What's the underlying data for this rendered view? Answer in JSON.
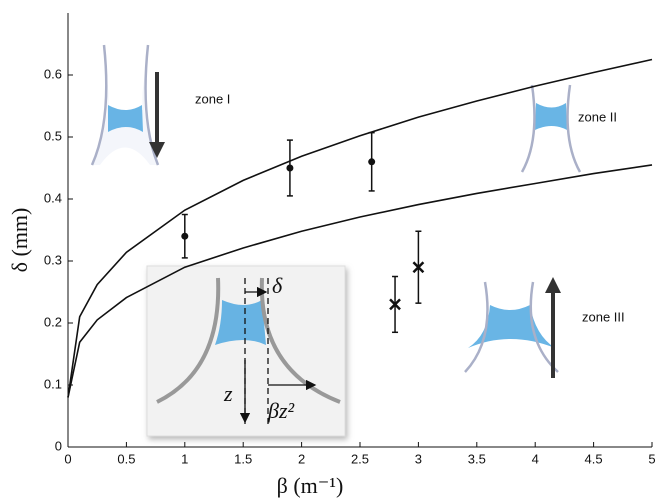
{
  "chart_data": {
    "type": "line",
    "x_label": "β (m⁻¹)",
    "y_label": "δ (mm)",
    "xlim": [
      0,
      5
    ],
    "ylim": [
      0,
      0.7
    ],
    "xticks": [
      0,
      0.5,
      1,
      1.5,
      2,
      2.5,
      3,
      3.5,
      4,
      4.5,
      5
    ],
    "yticks": [
      0,
      0.1,
      0.2,
      0.3,
      0.4,
      0.5,
      0.6
    ],
    "curves": [
      {
        "color": "#111111",
        "x": [
          0,
          0.1,
          0.25,
          0.5,
          1,
          1.5,
          2,
          2.5,
          3,
          3.5,
          4,
          4.5,
          5
        ],
        "values": [
          0.08,
          0.21,
          0.262,
          0.314,
          0.382,
          0.43,
          0.469,
          0.502,
          0.532,
          0.558,
          0.582,
          0.604,
          0.625
        ]
      },
      {
        "color": "#111111",
        "x": [
          0,
          0.1,
          0.25,
          0.5,
          1,
          1.5,
          2,
          2.5,
          3,
          3.5,
          4,
          4.5,
          5
        ],
        "values": [
          0.08,
          0.169,
          0.205,
          0.241,
          0.29,
          0.321,
          0.348,
          0.371,
          0.391,
          0.409,
          0.425,
          0.441,
          0.455
        ]
      }
    ],
    "points": [
      {
        "marker": "dot",
        "color": "#111111",
        "x": [
          1,
          1.9,
          2.6
        ],
        "values": [
          0.34,
          0.45,
          0.46
        ],
        "errors": [
          0.035,
          0.045,
          0.047
        ]
      },
      {
        "marker": "cross",
        "color": "#111111",
        "x": [
          2.8,
          3
        ],
        "values": [
          0.23,
          0.29
        ],
        "errors": [
          0.045,
          0.058
        ]
      }
    ],
    "annotations": [
      "zone I",
      "zone II",
      "zone III"
    ],
    "inset_labels": [
      "δ",
      "z",
      "βz²"
    ]
  }
}
